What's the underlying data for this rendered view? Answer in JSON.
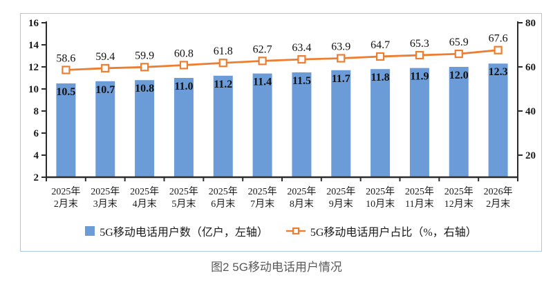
{
  "caption": "图2 5G移动电话用户情况",
  "colors": {
    "bar": "#6C9CD8",
    "line": "#ED7D31",
    "box_border": "#A9C6E6",
    "axis": "#2B2B2B",
    "label": "#1A1A1A",
    "caption_text": "#595959"
  },
  "chart_data": {
    "type": "bar",
    "subtype": "bar+line combo, dual axis",
    "title": "图2 5G移动电话用户情况",
    "grid": false,
    "legend_position": "bottom",
    "categories": [
      "2025年2月末",
      "2025年3月末",
      "2025年4月末",
      "2025年5月末",
      "2025年6月末",
      "2025年7月末",
      "2025年8月末",
      "2025年9月末",
      "2025年10月末",
      "2025年11月末",
      "2025年12月末",
      "2026年2月末"
    ],
    "categories_two_line": [
      [
        "2025年",
        "2月末"
      ],
      [
        "2025年",
        "3月末"
      ],
      [
        "2025年",
        "4月末"
      ],
      [
        "2025年",
        "5月末"
      ],
      [
        "2025年",
        "6月末"
      ],
      [
        "2025年",
        "7月末"
      ],
      [
        "2025年",
        "8月末"
      ],
      [
        "2025年",
        "9月末"
      ],
      [
        "2025年",
        "10月末"
      ],
      [
        "2025年",
        "11月末"
      ],
      [
        "2025年",
        "12月末"
      ],
      [
        "2026年",
        "2月末"
      ]
    ],
    "series": [
      {
        "name": "5G移动电话用户数（亿户，左轴）",
        "type": "bar",
        "axis": "left",
        "values": [
          10.5,
          10.7,
          10.8,
          11.0,
          11.2,
          11.4,
          11.5,
          11.7,
          11.8,
          11.9,
          12.0,
          12.3
        ]
      },
      {
        "name": "5G移动电话用户占比（%，右轴）",
        "type": "line",
        "axis": "right",
        "values": [
          58.6,
          59.4,
          59.9,
          60.8,
          61.8,
          62.7,
          63.4,
          63.9,
          64.7,
          65.3,
          65.9,
          67.6
        ]
      }
    ],
    "left_axis": {
      "min": 2,
      "max": 16,
      "ticks": [
        2,
        4,
        6,
        8,
        10,
        12,
        14,
        16
      ]
    },
    "right_axis": {
      "min": 10,
      "max": 80,
      "ticks": [
        20,
        40,
        60,
        80
      ]
    }
  }
}
